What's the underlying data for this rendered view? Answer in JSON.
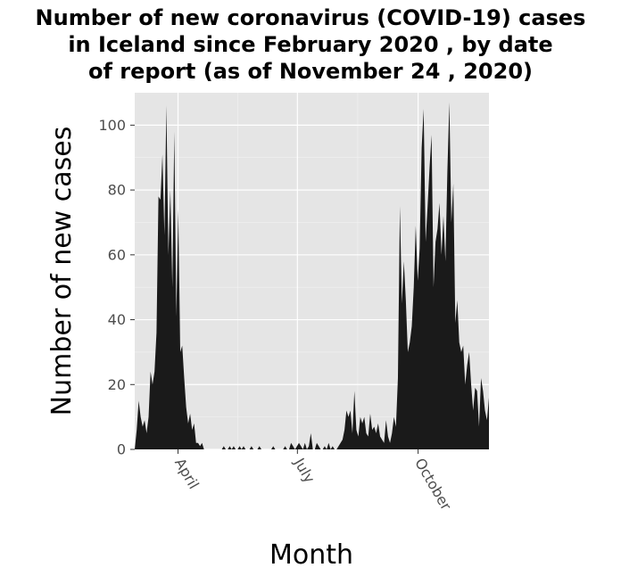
{
  "chart_data": {
    "type": "area",
    "title_lines": [
      "Number of new coronavirus (COVID-19) cases",
      "in Iceland since February 2020 , by date",
      "of report (as of November 24 , 2020)"
    ],
    "xlabel": "Month",
    "ylabel": "Number of new cases",
    "x_range": [
      "2020-02-28",
      "2020-11-24"
    ],
    "ylim": [
      0,
      110
    ],
    "y_ticks": [
      0,
      20,
      40,
      60,
      80,
      100
    ],
    "x_ticks": [
      {
        "date": "2020-04-01",
        "label": "April"
      },
      {
        "date": "2020-07-01",
        "label": "July"
      },
      {
        "date": "2020-10-01",
        "label": "October"
      }
    ],
    "grid": true,
    "background": "#e5e5e5",
    "fill_color": "#1a1a1a",
    "series": [
      {
        "start_date": "2020-02-28",
        "values": [
          0,
          6,
          15,
          10,
          7,
          9,
          5,
          10,
          24,
          20,
          24,
          36,
          78,
          77,
          91,
          66,
          106,
          60,
          80,
          50,
          98,
          41,
          74,
          30,
          32,
          22,
          13,
          8,
          11,
          6,
          8,
          2,
          2,
          1,
          2,
          0,
          0,
          0,
          0,
          0,
          0,
          0,
          0,
          0,
          0,
          1,
          0,
          0,
          1,
          0,
          1,
          0,
          0,
          1,
          0,
          1,
          0,
          0,
          0,
          1,
          0,
          0,
          0,
          1,
          0,
          0,
          0,
          0,
          0,
          0,
          1,
          0,
          0,
          0,
          0,
          0,
          1,
          0,
          0,
          2,
          1,
          0,
          1,
          2,
          1,
          0,
          2,
          0,
          1,
          5,
          0,
          0,
          2,
          1,
          0,
          0,
          1,
          0,
          2,
          0,
          1,
          0,
          0,
          1,
          2,
          3,
          6,
          12,
          10,
          12,
          5,
          18,
          6,
          4,
          10,
          8,
          10,
          5,
          4,
          11,
          6,
          7,
          5,
          8,
          4,
          3,
          2,
          9,
          4,
          2,
          5,
          10,
          7,
          22,
          75,
          45,
          58,
          46,
          30,
          33,
          38,
          50,
          69,
          52,
          62,
          93,
          105,
          64,
          75,
          87,
          97,
          50,
          64,
          68,
          76,
          60,
          72,
          58,
          86,
          107,
          70,
          82,
          39,
          46,
          33,
          30,
          32,
          20,
          26,
          30,
          20,
          12,
          19,
          18,
          7,
          22,
          18,
          12,
          9,
          16
        ]
      }
    ]
  }
}
